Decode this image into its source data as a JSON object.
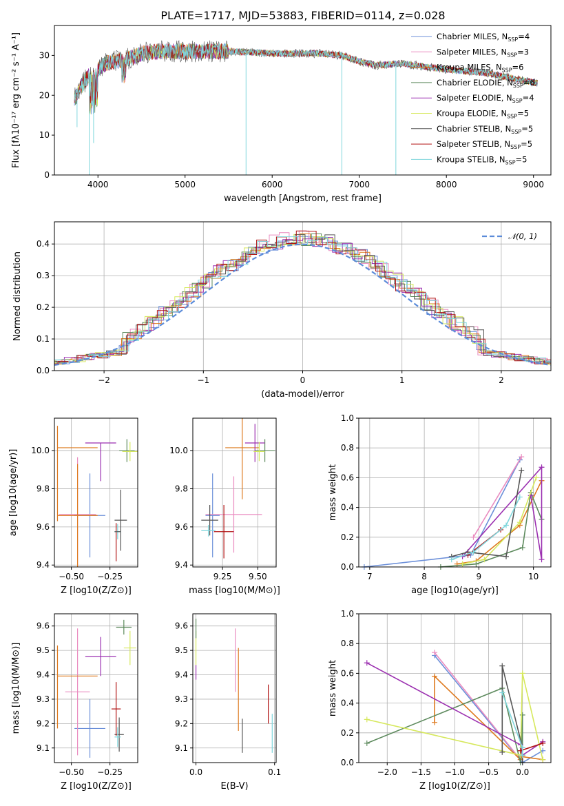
{
  "figure": {
    "title": "PLATE=1717, MJD=53883, FIBERID=0114, z=0.028"
  },
  "colors": {
    "Chabrier MILES": "#6b8fd9",
    "Salpeter MILES": "#ea8cc0",
    "Kroupa MILES": "#de7a1f",
    "Chabrier ELODIE": "#5d8a5d",
    "Salpeter ELODIE": "#9b2fb0",
    "Kroupa ELODIE": "#d6e85c",
    "Chabrier STELIB": "#555555",
    "Salpeter STELIB": "#b01212",
    "Kroupa STELIB": "#7fd6dc"
  },
  "chart_data": [
    {
      "id": "spectrum",
      "type": "line",
      "xlabel": "wavelength [Angstrom, rest frame]",
      "ylabel": "Flux [fλ10⁻¹⁷ erg cm⁻² s⁻¹ A⁻¹]",
      "xlim": [
        3500,
        9200
      ],
      "ylim": [
        0,
        37.5
      ],
      "xticks": [
        4000,
        5000,
        6000,
        7000,
        8000,
        9000
      ],
      "yticks": [
        0,
        10,
        20,
        30
      ],
      "legend_position": "top-right",
      "continuum": {
        "x": [
          3730,
          3800,
          3900,
          4000,
          4100,
          4200,
          4300,
          4400,
          4500,
          4700,
          5000,
          5500,
          6000,
          6500,
          6800,
          7000,
          7200,
          7500,
          7800,
          8000,
          8200,
          8500,
          8800,
          9050
        ],
        "y": [
          19,
          22,
          25,
          26.5,
          28,
          28.5,
          29,
          29.5,
          30.5,
          31,
          31,
          31,
          30.5,
          30.5,
          30,
          28.5,
          27.5,
          28,
          27,
          26.5,
          26,
          25.5,
          24,
          23
        ]
      },
      "series": [
        {
          "name": "Chabrier MILES, NSSP=4",
          "legend_label": "Chabrier MILES, N",
          "legend_sub": "SSP",
          "legend_tail": "=4"
        },
        {
          "name": "Salpeter MILES, NSSP=3",
          "legend_label": "Salpeter MILES, N",
          "legend_sub": "SSP",
          "legend_tail": "=3"
        },
        {
          "name": "Kroupa MILES, NSSP=6",
          "legend_label": "Kroupa MILES, N",
          "legend_sub": "SSP",
          "legend_tail": "=6"
        },
        {
          "name": "Chabrier ELODIE, NSSP=6",
          "legend_label": "Chabrier ELODIE, N",
          "legend_sub": "SSP",
          "legend_tail": "=6"
        },
        {
          "name": "Salpeter ELODIE, NSSP=4",
          "legend_label": "Salpeter ELODIE, N",
          "legend_sub": "SSP",
          "legend_tail": "=4"
        },
        {
          "name": "Kroupa ELODIE, NSSP=5",
          "legend_label": "Kroupa ELODIE, N",
          "legend_sub": "SSP",
          "legend_tail": "=5"
        },
        {
          "name": "Chabrier STELIB, NSSP=5",
          "legend_label": "Chabrier STELIB, N",
          "legend_sub": "SSP",
          "legend_tail": "=5"
        },
        {
          "name": "Salpeter STELIB, NSSP=5",
          "legend_label": "Salpeter STELIB, N",
          "legend_sub": "SSP",
          "legend_tail": "=5"
        },
        {
          "name": "Kroupa STELIB, NSSP=5",
          "legend_label": "Kroupa STELIB, N",
          "legend_sub": "SSP",
          "legend_tail": "=5"
        }
      ],
      "dips": [
        {
          "x": 3760,
          "y": 12
        },
        {
          "x": 3900,
          "y": 0
        },
        {
          "x": 3950,
          "y": 8
        },
        {
          "x": 5700,
          "y": 0
        },
        {
          "x": 6800,
          "y": 0
        },
        {
          "x": 7420,
          "y": 0
        }
      ]
    },
    {
      "id": "residuals",
      "type": "histogram",
      "xlabel": "(data-model)/error",
      "ylabel": "Normed distribution",
      "xlim": [
        -2.5,
        2.5
      ],
      "ylim": [
        0,
        0.47
      ],
      "xticks": [
        -2,
        -1,
        0,
        1,
        2
      ],
      "yticks": [
        0.0,
        0.1,
        0.2,
        0.3,
        0.4
      ],
      "grid": true,
      "legend_position": "top-right",
      "legend": "𝒩(0, 1)",
      "bin_width": 0.1
    },
    {
      "id": "age_vs_Z",
      "type": "errorbar",
      "xlabel": "Z [log10(Z/Z⊙)]",
      "ylabel": "age  [log10(age/yr)]",
      "xlim": [
        -0.61,
        -0.07
      ],
      "ylim": [
        9.39,
        10.17
      ],
      "xticks": [
        -0.5,
        -0.25
      ],
      "yticks": [
        9.4,
        9.6,
        9.8,
        10.0
      ],
      "grid": true,
      "points": [
        {
          "s": "Chabrier MILES",
          "x": -0.38,
          "xe": 0.1,
          "y": 9.66,
          "ye": 0.22
        },
        {
          "s": "Salpeter MILES",
          "x": -0.46,
          "xe": 0.12,
          "y": 9.665,
          "ye": 0.3
        },
        {
          "s": "Kroupa MILES",
          "x": -0.46,
          "xe": 0.13,
          "y": 9.66,
          "ye": 0.27
        },
        {
          "s": "Kroupa MILES",
          "x": -0.46,
          "xe": 0.13,
          "y": 10.015,
          "ye": 0.0
        },
        {
          "s": "Kroupa MILES",
          "x": -0.59,
          "xe": 0.0,
          "y": 9.88,
          "ye": 0.25
        },
        {
          "s": "Chabrier ELODIE",
          "x": -0.14,
          "xe": 0.05,
          "y": 10.0,
          "ye": 0.06
        },
        {
          "s": "Salpeter ELODIE",
          "x": -0.31,
          "xe": 0.1,
          "y": 10.04,
          "ye": 0.0
        },
        {
          "s": "Salpeter ELODIE",
          "x": -0.31,
          "xe": 0.0,
          "y": 9.94,
          "ye": 0.1
        },
        {
          "s": "Kroupa ELODIE",
          "x": -0.12,
          "xe": 0.05,
          "y": 9.995,
          "ye": 0.05
        },
        {
          "s": "Chabrier STELIB",
          "x": -0.18,
          "xe": 0.04,
          "y": 9.635,
          "ye": 0.16
        },
        {
          "s": "Salpeter STELIB",
          "x": -0.21,
          "xe": 0.0,
          "y": 9.52,
          "ye": 0.1
        },
        {
          "s": "Kroupa STELIB",
          "x": -0.2,
          "xe": 0.02,
          "y": 9.575,
          "ye": 0.04
        },
        {
          "s": "Chabrier STELIB",
          "x": -0.2,
          "xe": 0.02,
          "y": 9.575,
          "ye": 0.0
        }
      ]
    },
    {
      "id": "age_vs_mass",
      "type": "errorbar",
      "xlabel": "mass [log10(M/M⊙)]",
      "ylabel": "",
      "xlim": [
        9.04,
        9.63
      ],
      "ylim": [
        9.39,
        10.17
      ],
      "xticks": [
        9.25,
        9.5
      ],
      "yticks": [
        9.4,
        9.6,
        9.8,
        10.0
      ],
      "grid": true,
      "points": [
        {
          "s": "Chabrier MILES",
          "x": 9.18,
          "xe": 0.05,
          "y": 9.66,
          "ye": 0.22
        },
        {
          "s": "Salpeter MILES",
          "x": 9.33,
          "xe": 0.2,
          "y": 9.665,
          "ye": 0.2
        },
        {
          "s": "Kroupa MILES",
          "x": 9.39,
          "xe": 0.12,
          "y": 10.015,
          "ye": 0.27
        },
        {
          "s": "Chabrier ELODIE",
          "x": 9.55,
          "xe": 0.07,
          "y": 10.0,
          "ye": 0.06
        },
        {
          "s": "Salpeter ELODIE",
          "x": 9.48,
          "xe": 0.07,
          "y": 10.04,
          "ye": 0.1
        },
        {
          "s": "Kroupa ELODIE",
          "x": 9.51,
          "xe": 0.04,
          "y": 9.995,
          "ye": 0.05
        },
        {
          "s": "Chabrier STELIB",
          "x": 9.16,
          "xe": 0.06,
          "y": 9.635,
          "ye": 0.08
        },
        {
          "s": "Salpeter STELIB",
          "x": 9.26,
          "xe": 0.07,
          "y": 9.575,
          "ye": 0.14
        },
        {
          "s": "Kroupa STELIB",
          "x": 9.15,
          "xe": 0.05,
          "y": 9.58,
          "ye": 0.03
        }
      ]
    },
    {
      "id": "mass_vs_Z",
      "type": "errorbar",
      "xlabel": "Z [log10(Z/Z⊙)]",
      "ylabel": "mass [log10(M/M⊙)]",
      "xlim": [
        -0.61,
        -0.07
      ],
      "ylim": [
        9.04,
        9.65
      ],
      "xticks": [
        -0.5,
        -0.25
      ],
      "yticks": [
        9.1,
        9.2,
        9.3,
        9.4,
        9.5,
        9.6
      ],
      "grid": true,
      "points": [
        {
          "s": "Chabrier MILES",
          "x": -0.38,
          "xe": 0.1,
          "y": 9.18,
          "ye": 0.12
        },
        {
          "s": "Salpeter MILES",
          "x": -0.46,
          "xe": 0.08,
          "y": 9.33,
          "ye": 0.26
        },
        {
          "s": "Kroupa MILES",
          "x": -0.46,
          "xe": 0.13,
          "y": 9.395,
          "ye": 0.0
        },
        {
          "s": "Kroupa MILES",
          "x": -0.59,
          "xe": 0.0,
          "y": 9.35,
          "ye": 0.17
        },
        {
          "s": "Chabrier ELODIE",
          "x": -0.16,
          "xe": 0.05,
          "y": 9.595,
          "ye": 0.03
        },
        {
          "s": "Salpeter ELODIE",
          "x": -0.31,
          "xe": 0.1,
          "y": 9.475,
          "ye": 0.08
        },
        {
          "s": "Kroupa ELODIE",
          "x": -0.12,
          "xe": 0.04,
          "y": 9.51,
          "ye": 0.07
        },
        {
          "s": "Chabrier STELIB",
          "x": -0.19,
          "xe": 0.03,
          "y": 9.155,
          "ye": 0.07
        },
        {
          "s": "Salpeter STELIB",
          "x": -0.21,
          "xe": 0.03,
          "y": 9.26,
          "ye": 0.11
        },
        {
          "s": "Kroupa STELIB",
          "x": -0.2,
          "xe": 0.02,
          "y": 9.145,
          "ye": 0.04
        }
      ]
    },
    {
      "id": "mass_vs_ebv",
      "type": "errorbar",
      "xlabel": "E(B-V)",
      "ylabel": "",
      "xlim": [
        -0.004,
        0.102
      ],
      "ylim": [
        9.04,
        9.65
      ],
      "xticks": [
        0.0,
        0.1
      ],
      "yticks": [
        9.1,
        9.2,
        9.3,
        9.4,
        9.5,
        9.6
      ],
      "grid": true,
      "points": [
        {
          "s": "Kroupa ELODIE",
          "x": 0.0,
          "xe": 0.0,
          "y": 9.51,
          "ye": 0.07
        },
        {
          "s": "Chabrier ELODIE",
          "x": 0.0,
          "xe": 0.0,
          "y": 9.59,
          "ye": 0.04
        },
        {
          "s": "Salpeter ELODIE",
          "x": 0.0,
          "xe": 0.0,
          "y": 9.41,
          "ye": 0.03
        },
        {
          "s": "Salpeter MILES",
          "x": 0.05,
          "xe": 0.0,
          "y": 9.46,
          "ye": 0.13
        },
        {
          "s": "Kroupa MILES",
          "x": 0.054,
          "xe": 0.0,
          "y": 9.34,
          "ye": 0.17
        },
        {
          "s": "Chabrier STELIB",
          "x": 0.059,
          "xe": 0.0,
          "y": 9.15,
          "ye": 0.07
        },
        {
          "s": "Salpeter STELIB",
          "x": 0.092,
          "xe": 0.0,
          "y": 9.28,
          "ye": 0.08
        },
        {
          "s": "Kroupa STELIB",
          "x": 0.097,
          "xe": 0.0,
          "y": 9.16,
          "ye": 0.08
        }
      ]
    },
    {
      "id": "weight_vs_age",
      "type": "line",
      "xlabel": "age  [log10(age/yr)]",
      "ylabel": "mass weight",
      "xlim": [
        6.8,
        10.32
      ],
      "ylim": [
        0,
        1.0
      ],
      "xticks": [
        7,
        8,
        9,
        10
      ],
      "yticks": [
        0.0,
        0.2,
        0.4,
        0.6,
        0.8,
        1.0
      ],
      "grid": true,
      "series": [
        {
          "s": "Chabrier MILES",
          "x": [
            6.9,
            8.85,
            9.75,
            9.75
          ],
          "y": [
            0.0,
            0.08,
            0.72,
            0.72
          ]
        },
        {
          "s": "Salpeter MILES",
          "x": [
            8.9,
            9.78
          ],
          "y": [
            0.2,
            0.74
          ]
        },
        {
          "s": "Kroupa MILES",
          "x": [
            8.6,
            8.95,
            9.75,
            10.15
          ],
          "y": [
            0.02,
            0.04,
            0.28,
            0.58
          ]
        },
        {
          "s": "Chabrier ELODIE",
          "x": [
            8.3,
            8.95,
            9.8,
            9.95,
            10.15
          ],
          "y": [
            0.0,
            0.02,
            0.13,
            0.5,
            0.32
          ]
        },
        {
          "s": "Salpeter ELODIE",
          "x": [
            8.7,
            10.15,
            10.15,
            9.95
          ],
          "y": [
            0.07,
            0.67,
            0.05,
            0.48
          ]
        },
        {
          "s": "Kroupa ELODIE",
          "x": [
            8.7,
            9.1,
            9.75,
            10.05
          ],
          "y": [
            0.02,
            0.05,
            0.3,
            0.6
          ]
        },
        {
          "s": "Chabrier STELIB",
          "x": [
            8.5,
            8.8,
            9.5,
            9.78
          ],
          "y": [
            0.07,
            0.1,
            0.07,
            0.65
          ]
        },
        {
          "s": "Salpeter STELIB",
          "x": [
            8.8,
            9.4
          ],
          "y": [
            0.08,
            0.25
          ]
        },
        {
          "s": "Kroupa STELIB",
          "x": [
            8.5,
            8.9,
            9.5,
            9.75
          ],
          "y": [
            0.05,
            0.1,
            0.28,
            0.47
          ]
        }
      ]
    },
    {
      "id": "weight_vs_Z",
      "type": "line",
      "xlabel": "Z [log10(Z/Z⊙)]",
      "ylabel": "mass weight",
      "xlim": [
        -2.42,
        0.42
      ],
      "ylim": [
        0,
        1.0
      ],
      "xticks": [
        -2.0,
        -1.5,
        -1.0,
        -0.5,
        0.0
      ],
      "yticks": [
        0.0,
        0.2,
        0.4,
        0.6,
        0.8,
        1.0
      ],
      "grid": true,
      "series": [
        {
          "s": "Chabrier MILES",
          "x": [
            -1.3,
            0.0,
            0.3
          ],
          "y": [
            0.72,
            0.0,
            0.08
          ]
        },
        {
          "s": "Salpeter MILES",
          "x": [
            -1.3,
            -0.03
          ],
          "y": [
            0.74,
            0.02
          ]
        },
        {
          "s": "Kroupa MILES",
          "x": [
            -1.3,
            -1.3,
            -0.03,
            0.0,
            0.3
          ],
          "y": [
            0.27,
            0.58,
            0.02,
            0.04,
            0.02
          ]
        },
        {
          "s": "Chabrier ELODIE",
          "x": [
            -2.3,
            -0.3,
            -0.03,
            0.0,
            0.0
          ],
          "y": [
            0.13,
            0.5,
            0.0,
            0.32,
            0.05
          ]
        },
        {
          "s": "Salpeter ELODIE",
          "x": [
            -2.3,
            -0.03,
            0.0,
            0.3
          ],
          "y": [
            0.67,
            0.12,
            0.05,
            0.14
          ]
        },
        {
          "s": "Kroupa ELODIE",
          "x": [
            -2.3,
            -0.03,
            0.0,
            0.3
          ],
          "y": [
            0.29,
            0.05,
            0.6,
            0.02
          ]
        },
        {
          "s": "Chabrier STELIB",
          "x": [
            -0.3,
            -0.3,
            0.0,
            0.0
          ],
          "y": [
            0.07,
            0.65,
            0.1,
            0.0
          ]
        },
        {
          "s": "Salpeter STELIB",
          "x": [
            -0.03,
            0.3
          ],
          "y": [
            0.08,
            0.13
          ]
        },
        {
          "s": "Kroupa STELIB",
          "x": [
            -0.3,
            0.0,
            0.0
          ],
          "y": [
            0.47,
            0.1,
            0.05
          ]
        }
      ]
    }
  ]
}
